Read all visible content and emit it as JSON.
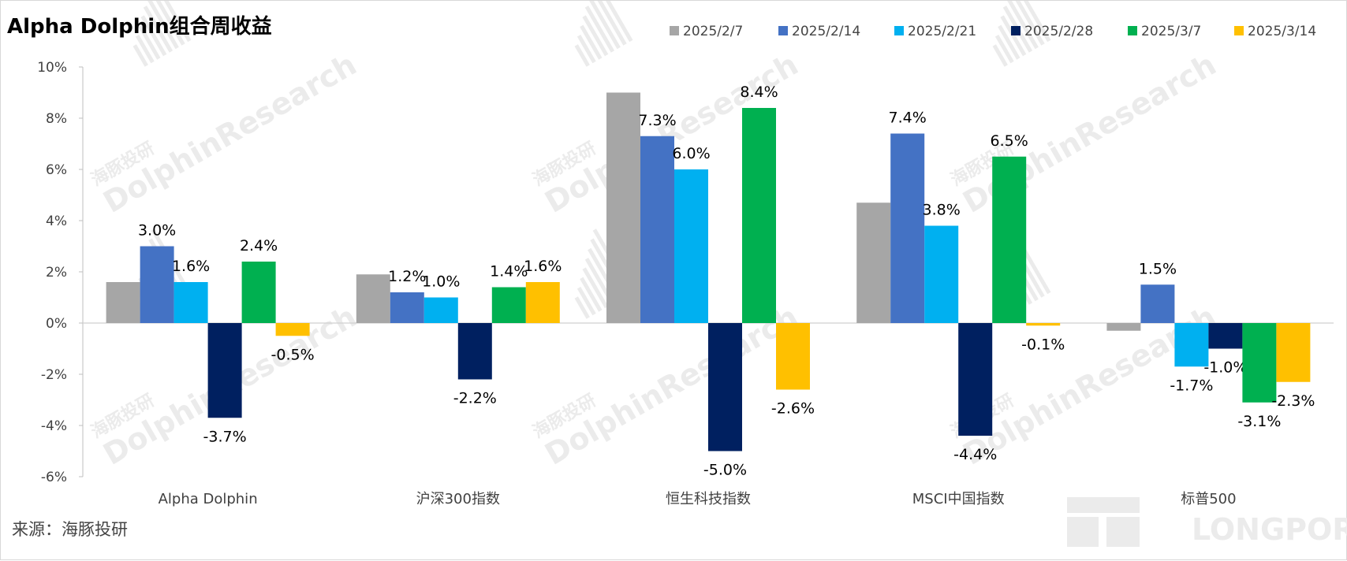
{
  "title": "Alpha Dolphin组合周收益",
  "source": "来源：海豚投研",
  "watermark": {
    "brand_cn": "海豚投研",
    "brand_en": "DolphinResearch",
    "partner": "LONGPORT"
  },
  "chart_data": {
    "type": "bar",
    "title": "Alpha Dolphin组合周收益",
    "xlabel": "",
    "ylabel": "",
    "ylim": [
      -6,
      10
    ],
    "ytick_step": 2,
    "y_format": "percent",
    "grid": false,
    "legend_position": "top-right",
    "categories": [
      "Alpha Dolphin",
      "沪深300指数",
      "恒生科技指数",
      "MSCI中国指数",
      "标普500"
    ],
    "series": [
      {
        "name": "2025/2/7",
        "color": "#a6a6a6",
        "values": [
          1.6,
          1.9,
          9.0,
          4.7,
          -0.3
        ],
        "show_labels": false
      },
      {
        "name": "2025/2/14",
        "color": "#4472c4",
        "values": [
          3.0,
          1.2,
          7.3,
          7.4,
          1.5
        ],
        "show_labels": true
      },
      {
        "name": "2025/2/21",
        "color": "#00b0f0",
        "values": [
          1.6,
          1.0,
          6.0,
          3.8,
          -1.7
        ],
        "show_labels": true
      },
      {
        "name": "2025/2/28",
        "color": "#002060",
        "values": [
          -3.7,
          -2.2,
          -5.0,
          -4.4,
          -1.0
        ],
        "show_labels": true
      },
      {
        "name": "2025/3/7",
        "color": "#00b050",
        "values": [
          2.4,
          1.4,
          8.4,
          6.5,
          -3.1
        ],
        "show_labels": true
      },
      {
        "name": "2025/3/14",
        "color": "#ffc000",
        "values": [
          -0.5,
          1.6,
          -2.6,
          -0.1,
          -2.3
        ],
        "show_labels": true
      }
    ]
  }
}
